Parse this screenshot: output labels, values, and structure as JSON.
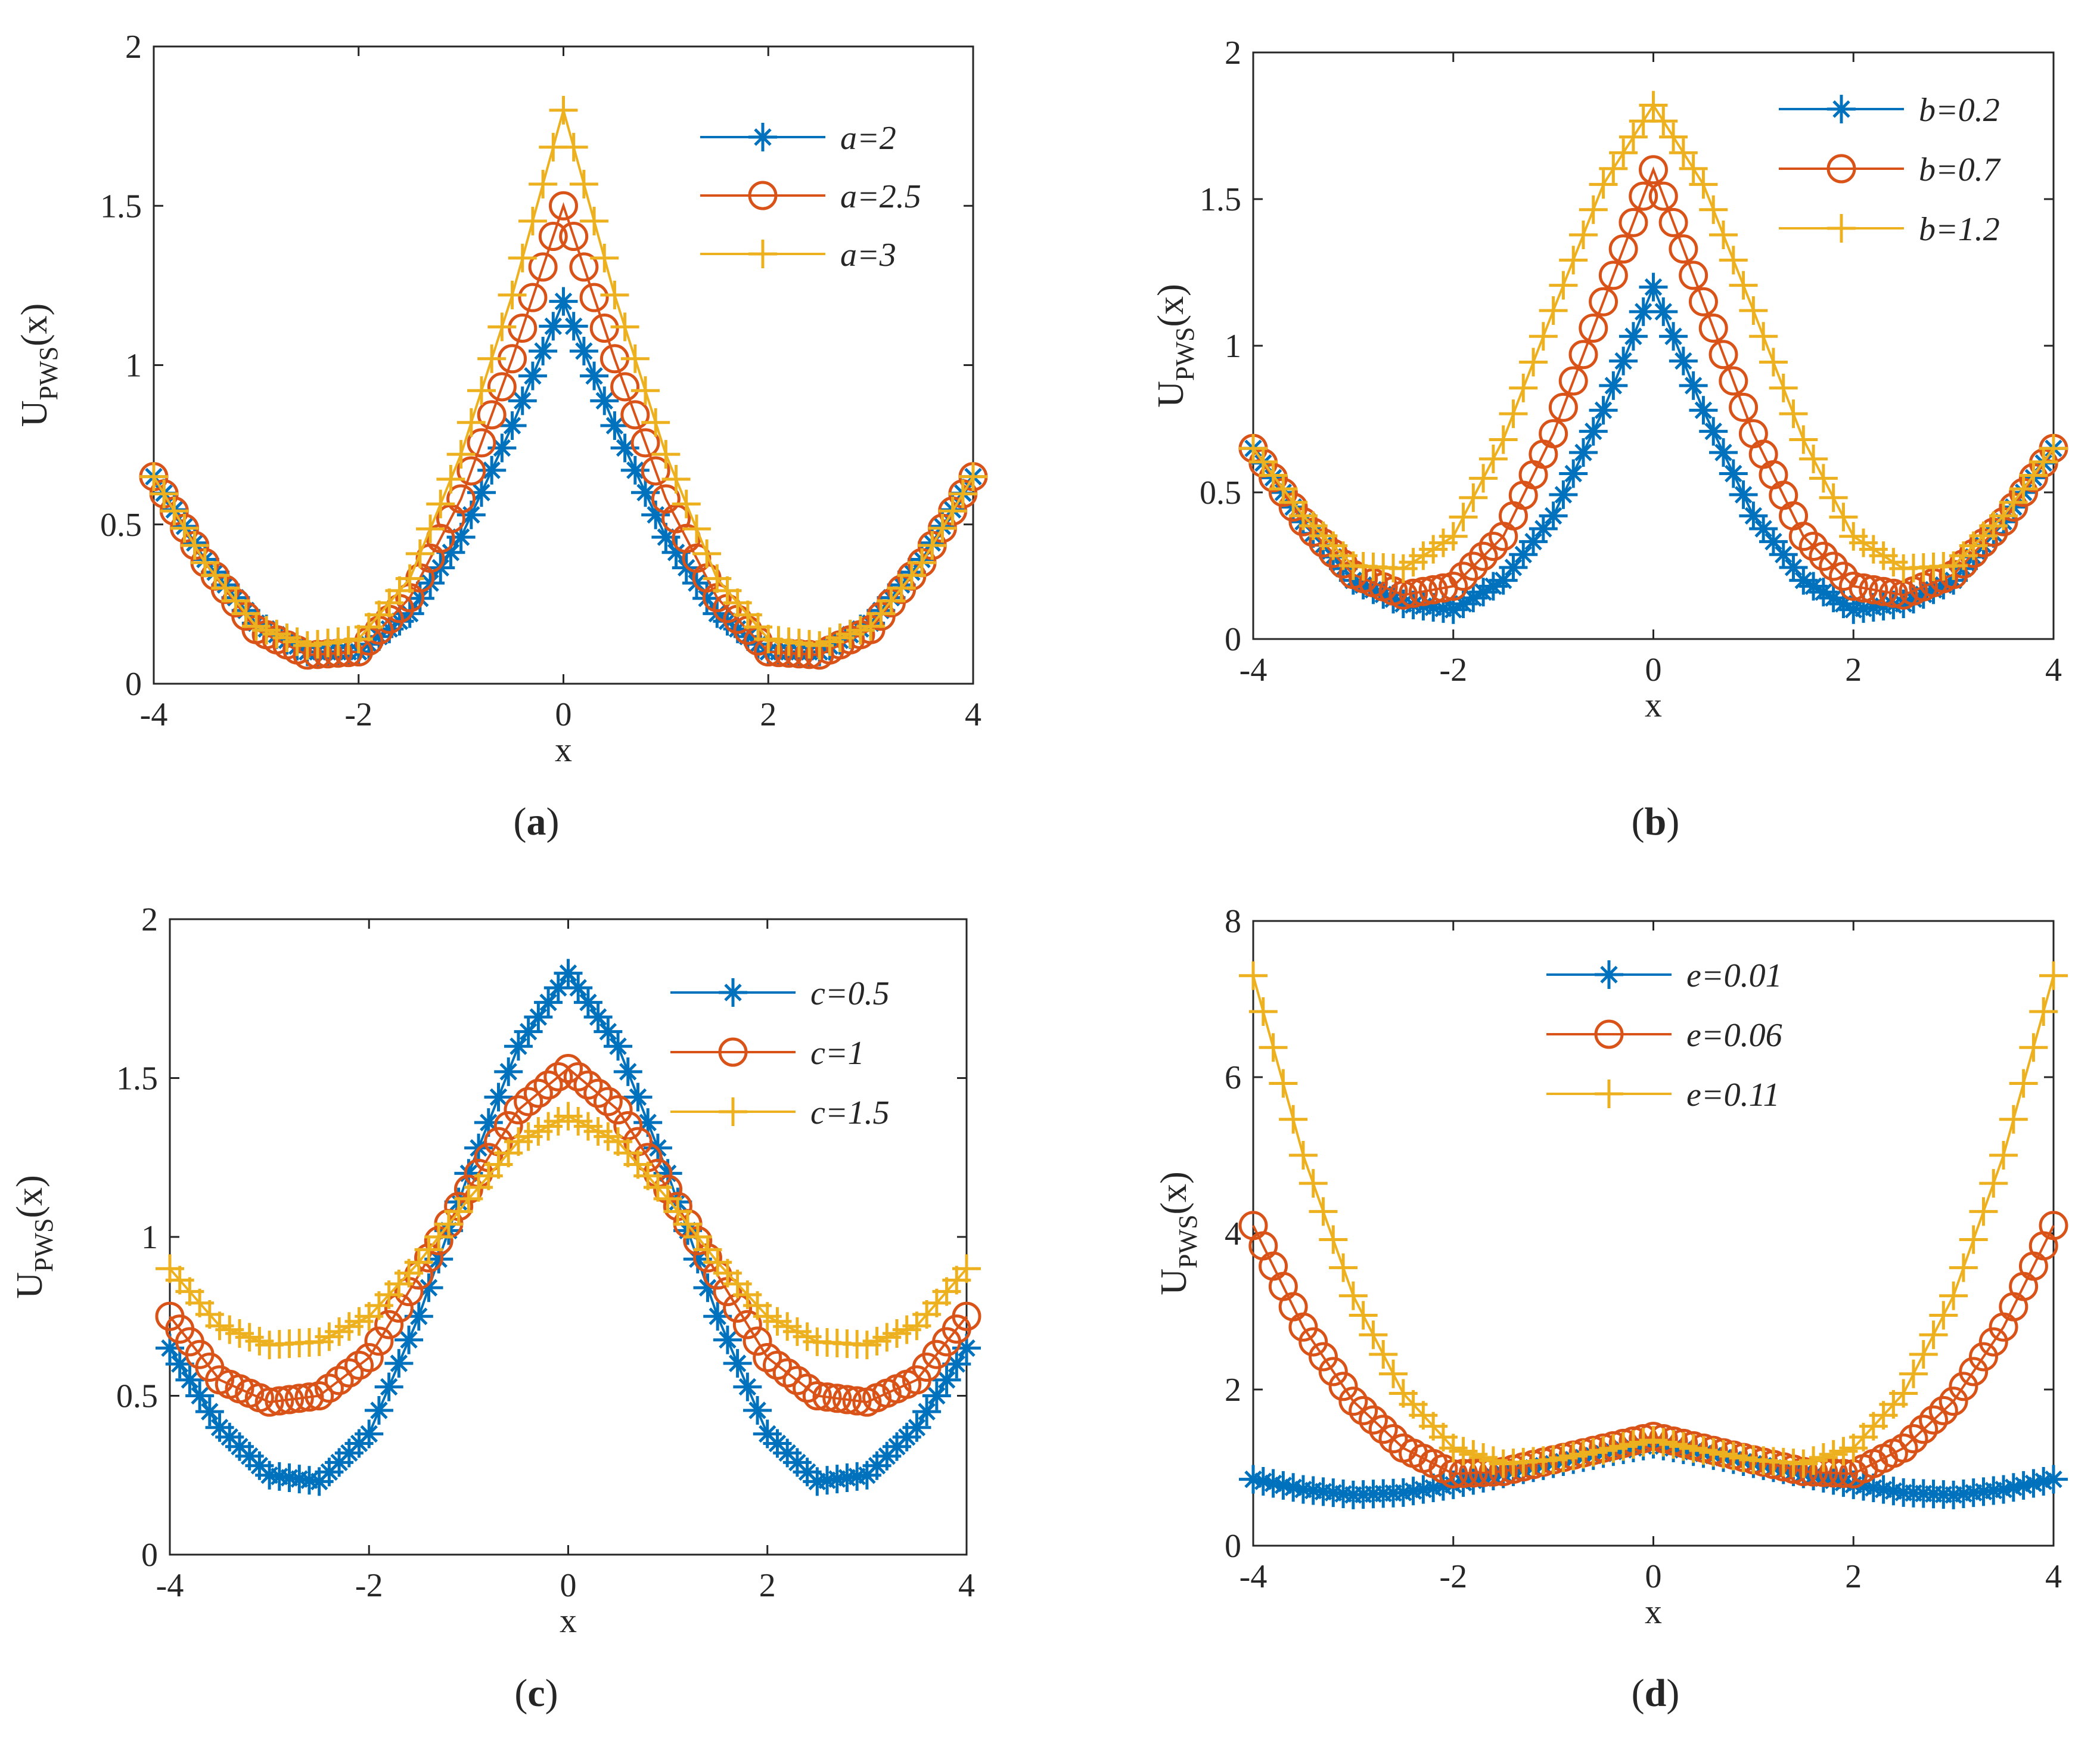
{
  "figure": {
    "colors": {
      "series1": "#0072BD",
      "series2": "#D95319",
      "series3": "#EDB120",
      "axis": "#262626"
    }
  },
  "chart_data": [
    {
      "id": "a",
      "type": "line",
      "caption": {
        "open": "(",
        "letter": "a",
        "close": ")"
      },
      "xlabel": "x",
      "ylabel": {
        "main": "U",
        "sub": "PWS",
        "arg": "(x)"
      },
      "xlim": [
        -4,
        4
      ],
      "ylim": [
        0,
        2
      ],
      "xticks": [
        -4,
        -2,
        0,
        2,
        4
      ],
      "yticks": [
        0,
        0.5,
        1,
        1.5,
        2
      ],
      "ytick_labels": [
        "0",
        "0.5",
        "1",
        "1.5",
        "2"
      ],
      "legend_position": "top-right",
      "series": [
        {
          "name": "a=2",
          "marker": "asterisk",
          "x": [
            -4,
            -3.5,
            -3,
            -2.5,
            -2,
            -1.5,
            -1,
            -0.5,
            0,
            0.5,
            1,
            1.5,
            2,
            2.5,
            3,
            3.5,
            4
          ],
          "values": [
            0.65,
            0.39,
            0.19,
            0.1,
            0.1,
            0.22,
            0.46,
            0.81,
            1.2,
            0.81,
            0.46,
            0.22,
            0.1,
            0.1,
            0.19,
            0.39,
            0.65
          ]
        },
        {
          "name": "a=2.5",
          "marker": "circle",
          "x": [
            -4,
            -3.5,
            -3,
            -2.5,
            -2,
            -1.5,
            -1,
            -0.5,
            0,
            0.5,
            1,
            1.5,
            2,
            2.5,
            3,
            3.5,
            4
          ],
          "values": [
            0.65,
            0.38,
            0.17,
            0.09,
            0.1,
            0.27,
            0.58,
            1.02,
            1.5,
            1.02,
            0.58,
            0.27,
            0.1,
            0.09,
            0.17,
            0.38,
            0.65
          ]
        },
        {
          "name": "a=3",
          "marker": "plus",
          "x": [
            -4,
            -3.5,
            -3,
            -2.5,
            -2,
            -1.5,
            -1,
            -0.5,
            0,
            0.5,
            1,
            1.5,
            2,
            2.5,
            3,
            3.5,
            4
          ],
          "values": [
            0.65,
            0.38,
            0.18,
            0.12,
            0.14,
            0.33,
            0.72,
            1.22,
            1.8,
            1.22,
            0.72,
            0.33,
            0.14,
            0.12,
            0.18,
            0.38,
            0.65
          ]
        }
      ]
    },
    {
      "id": "b",
      "type": "line",
      "caption": {
        "open": "(",
        "letter": "b",
        "close": ")"
      },
      "xlabel": "x",
      "ylabel": {
        "main": "U",
        "sub": "PWS",
        "arg": "(x)"
      },
      "xlim": [
        -4,
        4
      ],
      "ylim": [
        0,
        2
      ],
      "xticks": [
        -4,
        -2,
        0,
        2,
        4
      ],
      "yticks": [
        0,
        0.5,
        1,
        1.5,
        2
      ],
      "ytick_labels": [
        "0",
        "0.5",
        "1",
        "1.5",
        "2"
      ],
      "legend_position": "top-right",
      "series": [
        {
          "name": "b=0.2",
          "marker": "asterisk",
          "x": [
            -4,
            -3.5,
            -3,
            -2.5,
            -2,
            -1.5,
            -1,
            -0.5,
            0,
            0.5,
            1,
            1.5,
            2,
            2.5,
            3,
            3.5,
            4
          ],
          "values": [
            0.65,
            0.4,
            0.2,
            0.12,
            0.1,
            0.2,
            0.42,
            0.78,
            1.2,
            0.78,
            0.42,
            0.2,
            0.1,
            0.12,
            0.2,
            0.4,
            0.65
          ]
        },
        {
          "name": "b=0.7",
          "marker": "circle",
          "x": [
            -4,
            -3.5,
            -3,
            -2.5,
            -2,
            -1.5,
            -1,
            -0.5,
            0,
            0.5,
            1,
            1.5,
            2,
            2.5,
            3,
            3.5,
            4
          ],
          "values": [
            0.65,
            0.4,
            0.22,
            0.15,
            0.18,
            0.35,
            0.7,
            1.15,
            1.6,
            1.15,
            0.7,
            0.35,
            0.18,
            0.15,
            0.22,
            0.4,
            0.65
          ]
        },
        {
          "name": "b=1.2",
          "marker": "plus",
          "x": [
            -4,
            -3.5,
            -3,
            -2.5,
            -2,
            -1.5,
            -1,
            -0.5,
            0,
            0.5,
            1,
            1.5,
            2,
            2.5,
            3,
            3.5,
            4
          ],
          "values": [
            0.65,
            0.42,
            0.25,
            0.24,
            0.35,
            0.68,
            1.12,
            1.55,
            1.82,
            1.55,
            1.12,
            0.68,
            0.35,
            0.24,
            0.25,
            0.42,
            0.65
          ]
        }
      ]
    },
    {
      "id": "c",
      "type": "line",
      "caption": {
        "open": "(",
        "letter": "c",
        "close": ")"
      },
      "xlabel": "x",
      "ylabel": {
        "main": "U",
        "sub": "PWS",
        "arg": "(x)"
      },
      "xlim": [
        -4,
        4
      ],
      "ylim": [
        0,
        2
      ],
      "xticks": [
        -4,
        -2,
        0,
        2,
        4
      ],
      "yticks": [
        0,
        0.5,
        1,
        1.5,
        2
      ],
      "ytick_labels": [
        "0",
        "0.5",
        "1",
        "1.5",
        "2"
      ],
      "legend_position": "top-right",
      "series": [
        {
          "name": "c=0.5",
          "marker": "asterisk",
          "x": [
            -4,
            -3.5,
            -3,
            -2.5,
            -2,
            -1.5,
            -1,
            -0.5,
            0,
            0.5,
            1,
            1.5,
            2,
            2.5,
            3,
            3.5,
            4
          ],
          "values": [
            0.65,
            0.4,
            0.25,
            0.23,
            0.38,
            0.75,
            1.2,
            1.6,
            1.83,
            1.6,
            1.2,
            0.75,
            0.38,
            0.23,
            0.25,
            0.4,
            0.65
          ]
        },
        {
          "name": "c=1",
          "marker": "circle",
          "x": [
            -4,
            -3.5,
            -3,
            -2.5,
            -2,
            -1.5,
            -1,
            -0.5,
            0,
            0.5,
            1,
            1.5,
            2,
            2.5,
            3,
            3.5,
            4
          ],
          "values": [
            0.75,
            0.55,
            0.48,
            0.5,
            0.62,
            0.88,
            1.15,
            1.4,
            1.53,
            1.4,
            1.15,
            0.88,
            0.62,
            0.5,
            0.48,
            0.55,
            0.75
          ]
        },
        {
          "name": "c=1.5",
          "marker": "plus",
          "x": [
            -4,
            -3.5,
            -3,
            -2.5,
            -2,
            -1.5,
            -1,
            -0.5,
            0,
            0.5,
            1,
            1.5,
            2,
            2.5,
            3,
            3.5,
            4
          ],
          "values": [
            0.9,
            0.72,
            0.66,
            0.67,
            0.75,
            0.92,
            1.12,
            1.3,
            1.38,
            1.3,
            1.12,
            0.92,
            0.75,
            0.67,
            0.66,
            0.72,
            0.9
          ]
        }
      ]
    },
    {
      "id": "d",
      "type": "line",
      "caption": {
        "open": "(",
        "letter": "d",
        "close": ")"
      },
      "xlabel": "x",
      "ylabel": {
        "main": "U",
        "sub": "PWS",
        "arg": "(x)"
      },
      "xlim": [
        -4,
        4
      ],
      "ylim": [
        0,
        8
      ],
      "xticks": [
        -4,
        -2,
        0,
        2,
        4
      ],
      "yticks": [
        0,
        2,
        4,
        6,
        8
      ],
      "ytick_labels": [
        "0",
        "2",
        "4",
        "6",
        "8"
      ],
      "legend_position": "top-center",
      "series": [
        {
          "name": "e=0.01",
          "marker": "asterisk",
          "x": [
            -4,
            -3.5,
            -3,
            -2.5,
            -2,
            -1.5,
            -1,
            -0.5,
            0,
            0.5,
            1,
            1.5,
            2,
            2.5,
            3,
            3.5,
            4
          ],
          "values": [
            0.85,
            0.72,
            0.65,
            0.68,
            0.78,
            0.92,
            1.05,
            1.18,
            1.3,
            1.18,
            1.05,
            0.92,
            0.78,
            0.68,
            0.65,
            0.72,
            0.85
          ]
        },
        {
          "name": "e=0.06",
          "marker": "circle",
          "x": [
            -4,
            -3.5,
            -3,
            -2.5,
            -2,
            -1.5,
            -1,
            -0.5,
            0,
            0.5,
            1,
            1.5,
            2,
            2.5,
            3,
            3.5,
            4
          ],
          "values": [
            4.1,
            2.8,
            1.85,
            1.25,
            0.92,
            0.95,
            1.1,
            1.25,
            1.4,
            1.25,
            1.1,
            0.95,
            0.92,
            1.25,
            1.85,
            2.8,
            4.1
          ]
        },
        {
          "name": "e=0.11",
          "marker": "plus",
          "x": [
            -4,
            -3.5,
            -3,
            -2.5,
            -2,
            -1.5,
            -1,
            -0.5,
            0,
            0.5,
            1,
            1.5,
            2,
            2.5,
            3,
            3.5,
            4
          ],
          "values": [
            7.3,
            5.0,
            3.2,
            1.95,
            1.25,
            1.05,
            1.1,
            1.22,
            1.35,
            1.22,
            1.1,
            1.05,
            1.25,
            1.95,
            3.2,
            5.0,
            7.3
          ]
        }
      ]
    }
  ]
}
